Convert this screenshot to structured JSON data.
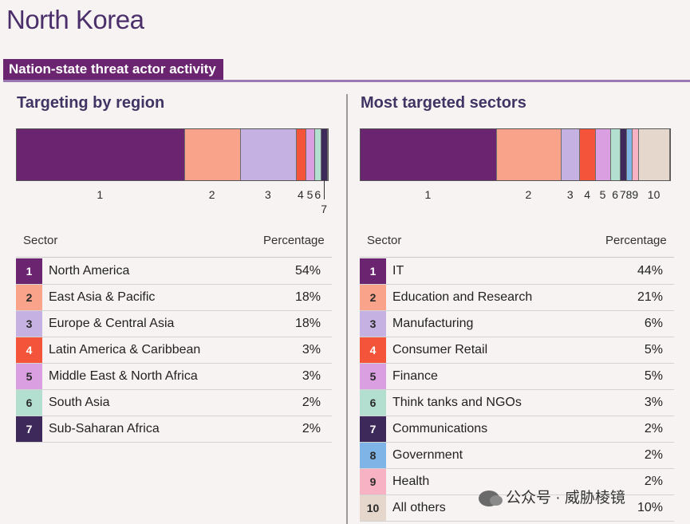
{
  "page": {
    "title": "North Korea",
    "section_label": "Nation-state threat actor activity",
    "watermark": "公众号 · 威胁棱镜"
  },
  "colors": [
    "#6b2470",
    "#f9a38a",
    "#c5b2e3",
    "#f4553a",
    "#d99fe0",
    "#b3dfd0",
    "#3d2a5a",
    "#7eb5e6",
    "#f7b3c3",
    "#e6d7cc"
  ],
  "chart_data": [
    {
      "type": "bar",
      "title": "Targeting by region",
      "stacked": true,
      "table_headers": [
        "Sector",
        "Percentage"
      ],
      "categories": [
        "North America",
        "East Asia & Pacific",
        "Europe & Central Asia",
        "Latin America & Caribbean",
        "Middle East & North Africa",
        "South Asia",
        "Sub-Saharan Africa"
      ],
      "values": [
        54,
        18,
        18,
        3,
        3,
        2,
        2
      ],
      "percent_labels": [
        "54%",
        "18%",
        "18%",
        "3%",
        "3%",
        "2%",
        "2%"
      ],
      "index_labels": [
        "1",
        "2",
        "3",
        "4",
        "5",
        "6",
        "7"
      ]
    },
    {
      "type": "bar",
      "title": "Most targeted sectors",
      "stacked": true,
      "table_headers": [
        "Sector",
        "Percentage"
      ],
      "categories": [
        "IT",
        "Education and Research",
        "Manufacturing",
        "Consumer Retail",
        "Finance",
        "Think tanks and NGOs",
        "Communications",
        "Government",
        "Health",
        "All others"
      ],
      "values": [
        44,
        21,
        6,
        5,
        5,
        3,
        2,
        2,
        2,
        10
      ],
      "percent_labels": [
        "44%",
        "21%",
        "6%",
        "5%",
        "5%",
        "3%",
        "2%",
        "2%",
        "2%",
        "10%"
      ],
      "index_labels": [
        "1",
        "2",
        "3",
        "4",
        "5",
        "6",
        "7",
        "8",
        "9",
        "10"
      ]
    }
  ]
}
